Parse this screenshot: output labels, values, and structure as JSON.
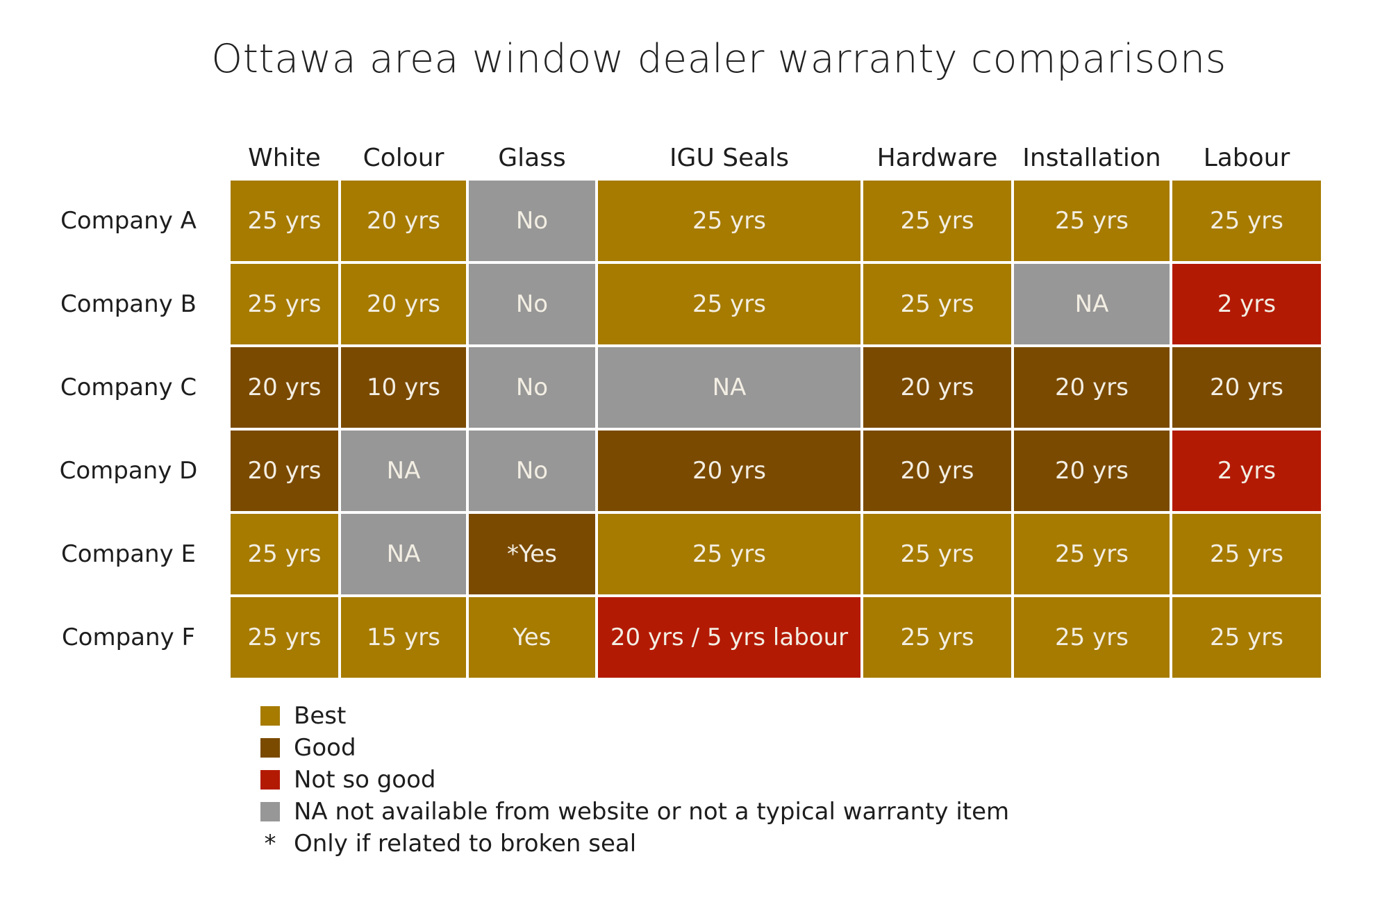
{
  "chart_data": {
    "type": "table",
    "title": "Ottawa area window dealer warranty comparisons",
    "columns": [
      "White",
      "Colour",
      "Glass",
      "IGU Seals",
      "Hardware",
      "Installation",
      "Labour"
    ],
    "rows": [
      {
        "label": "Company A",
        "cells": [
          {
            "text": "25 yrs",
            "rating": "best"
          },
          {
            "text": "20 yrs",
            "rating": "best"
          },
          {
            "text": "No",
            "rating": "na"
          },
          {
            "text": "25 yrs",
            "rating": "best"
          },
          {
            "text": "25 yrs",
            "rating": "best"
          },
          {
            "text": "25 yrs",
            "rating": "best"
          },
          {
            "text": "25 yrs",
            "rating": "best"
          }
        ]
      },
      {
        "label": "Company B",
        "cells": [
          {
            "text": "25 yrs",
            "rating": "best"
          },
          {
            "text": "20 yrs",
            "rating": "best"
          },
          {
            "text": "No",
            "rating": "na"
          },
          {
            "text": "25 yrs",
            "rating": "best"
          },
          {
            "text": "25 yrs",
            "rating": "best"
          },
          {
            "text": "NA",
            "rating": "na"
          },
          {
            "text": "2 yrs",
            "rating": "not_so_good"
          }
        ]
      },
      {
        "label": "Company C",
        "cells": [
          {
            "text": "20 yrs",
            "rating": "good"
          },
          {
            "text": "10 yrs",
            "rating": "good"
          },
          {
            "text": "No",
            "rating": "na"
          },
          {
            "text": "NA",
            "rating": "na"
          },
          {
            "text": "20 yrs",
            "rating": "good"
          },
          {
            "text": "20 yrs",
            "rating": "good"
          },
          {
            "text": "20 yrs",
            "rating": "good"
          }
        ]
      },
      {
        "label": "Company D",
        "cells": [
          {
            "text": "20 yrs",
            "rating": "good"
          },
          {
            "text": "NA",
            "rating": "na"
          },
          {
            "text": "No",
            "rating": "na"
          },
          {
            "text": "20 yrs",
            "rating": "good"
          },
          {
            "text": "20 yrs",
            "rating": "good"
          },
          {
            "text": "20 yrs",
            "rating": "good"
          },
          {
            "text": "2 yrs",
            "rating": "not_so_good"
          }
        ]
      },
      {
        "label": "Company E",
        "cells": [
          {
            "text": "25 yrs",
            "rating": "best"
          },
          {
            "text": "NA",
            "rating": "na"
          },
          {
            "text": "*Yes",
            "rating": "good"
          },
          {
            "text": "25 yrs",
            "rating": "best"
          },
          {
            "text": "25 yrs",
            "rating": "best"
          },
          {
            "text": "25 yrs",
            "rating": "best"
          },
          {
            "text": "25 yrs",
            "rating": "best"
          }
        ]
      },
      {
        "label": "Company F",
        "cells": [
          {
            "text": "25 yrs",
            "rating": "best"
          },
          {
            "text": "15 yrs",
            "rating": "best"
          },
          {
            "text": "Yes",
            "rating": "best"
          },
          {
            "text": "20 yrs / 5 yrs labour",
            "rating": "not_so_good"
          },
          {
            "text": "25 yrs",
            "rating": "best"
          },
          {
            "text": "25 yrs",
            "rating": "best"
          },
          {
            "text": "25 yrs",
            "rating": "best"
          }
        ]
      }
    ],
    "colors": {
      "best": "#a67b00",
      "good": "#7a4a00",
      "not_so_good": "#b31a04",
      "na": "#979797"
    },
    "legend": [
      {
        "rating": "best",
        "label": "Best"
      },
      {
        "rating": "good",
        "label": "Good"
      },
      {
        "rating": "not_so_good",
        "label": "Not so good"
      },
      {
        "rating": "na",
        "label": "NA not available from website or not a typical warranty item"
      }
    ],
    "footnote": {
      "symbol": "*",
      "text": "Only if related to broken seal"
    }
  }
}
